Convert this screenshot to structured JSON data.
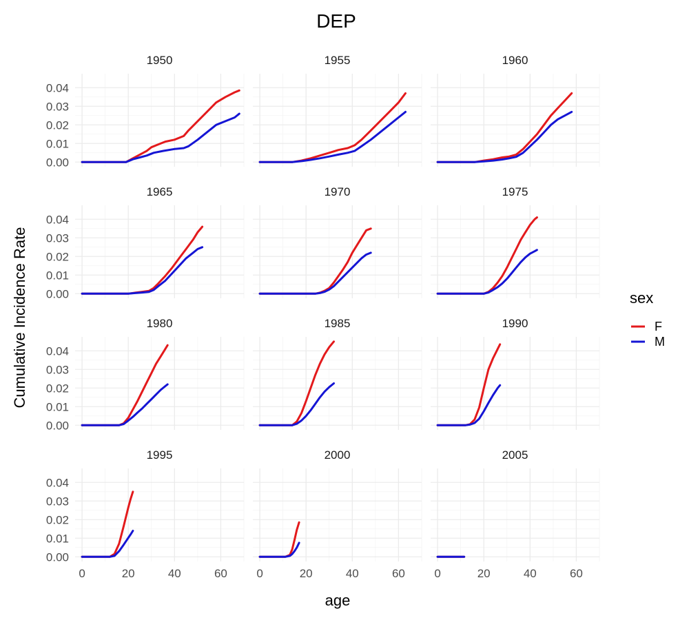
{
  "chart_data": {
    "type": "line",
    "title": "DEP",
    "xlabel": "age",
    "ylabel": "Cumulative Incidence Rate",
    "xlim": [
      -3,
      70
    ],
    "ylim": [
      -0.0025,
      0.0475
    ],
    "x_ticks": [
      0,
      20,
      40,
      60
    ],
    "x_tick_labels": [
      "0",
      "20",
      "40",
      "60"
    ],
    "y_ticks": [
      0,
      0.01,
      0.02,
      0.03,
      0.04
    ],
    "y_tick_labels": [
      "0.00",
      "0.01",
      "0.02",
      "0.03",
      "0.04"
    ],
    "grid": true,
    "legend": {
      "title": "sex",
      "placement": "right",
      "entries": [
        {
          "name": "F",
          "color": "#e31a1c"
        },
        {
          "name": "M",
          "color": "#1515d4"
        }
      ]
    },
    "panels": [
      {
        "label": "1950",
        "series": [
          {
            "name": "F",
            "x": [
              0,
              19,
              22,
              25,
              28,
              30,
              33,
              36,
              40,
              44,
              46,
              50,
              54,
              58,
              62,
              66,
              68
            ],
            "y": [
              0,
              0,
              0.002,
              0.004,
              0.006,
              0.008,
              0.0095,
              0.011,
              0.012,
              0.014,
              0.017,
              0.022,
              0.027,
              0.032,
              0.035,
              0.0375,
              0.0385
            ]
          },
          {
            "name": "M",
            "x": [
              0,
              19,
              22,
              25,
              28,
              31,
              35,
              40,
              44,
              46,
              50,
              54,
              58,
              62,
              66,
              68
            ],
            "y": [
              0,
              0,
              0.0015,
              0.0025,
              0.0035,
              0.005,
              0.006,
              0.007,
              0.0075,
              0.0085,
              0.012,
              0.016,
              0.02,
              0.022,
              0.024,
              0.026
            ]
          }
        ]
      },
      {
        "label": "1955",
        "series": [
          {
            "name": "F",
            "x": [
              0,
              14,
              18,
              22,
              26,
              30,
              34,
              38,
              41,
              44,
              48,
              52,
              56,
              60,
              63
            ],
            "y": [
              0,
              0,
              0.0008,
              0.002,
              0.0035,
              0.005,
              0.0065,
              0.0075,
              0.009,
              0.012,
              0.017,
              0.022,
              0.027,
              0.032,
              0.037
            ]
          },
          {
            "name": "M",
            "x": [
              0,
              14,
              18,
              22,
              26,
              30,
              34,
              38,
              41,
              44,
              48,
              52,
              56,
              60,
              63
            ],
            "y": [
              0,
              0,
              0.0005,
              0.0012,
              0.002,
              0.003,
              0.004,
              0.005,
              0.006,
              0.0085,
              0.012,
              0.016,
              0.02,
              0.024,
              0.027
            ]
          }
        ]
      },
      {
        "label": "1960",
        "series": [
          {
            "name": "F",
            "x": [
              0,
              16,
              20,
              24,
              28,
              31,
              34,
              37,
              40,
              43,
              46,
              49,
              52,
              55,
              58
            ],
            "y": [
              0,
              0,
              0.0008,
              0.0015,
              0.0025,
              0.003,
              0.004,
              0.007,
              0.011,
              0.015,
              0.02,
              0.025,
              0.029,
              0.033,
              0.037
            ]
          },
          {
            "name": "M",
            "x": [
              0,
              16,
              20,
              24,
              28,
              31,
              34,
              37,
              40,
              43,
              46,
              49,
              52,
              55,
              58
            ],
            "y": [
              0,
              0,
              0.0004,
              0.0008,
              0.0014,
              0.002,
              0.0028,
              0.005,
              0.0085,
              0.012,
              0.016,
              0.02,
              0.023,
              0.025,
              0.027
            ]
          }
        ]
      },
      {
        "label": "1965",
        "series": [
          {
            "name": "F",
            "x": [
              0,
              20,
              23,
              26,
              29,
              31,
              33,
              36,
              39,
              42,
              45,
              48,
              50,
              52
            ],
            "y": [
              0,
              0,
              0.0005,
              0.001,
              0.0015,
              0.003,
              0.0055,
              0.0095,
              0.014,
              0.019,
              0.024,
              0.029,
              0.033,
              0.036
            ]
          },
          {
            "name": "M",
            "x": [
              0,
              20,
              23,
              26,
              29,
              31,
              33,
              36,
              39,
              42,
              45,
              48,
              50,
              52
            ],
            "y": [
              0,
              0,
              0.0003,
              0.0006,
              0.001,
              0.002,
              0.004,
              0.007,
              0.011,
              0.015,
              0.019,
              0.022,
              0.024,
              0.025
            ]
          }
        ]
      },
      {
        "label": "1970",
        "series": [
          {
            "name": "F",
            "x": [
              0,
              24,
              26,
              28,
              30,
              32,
              34,
              36,
              38,
              40,
              42,
              44,
              46,
              48
            ],
            "y": [
              0,
              0,
              0.0005,
              0.0015,
              0.003,
              0.006,
              0.0095,
              0.013,
              0.017,
              0.022,
              0.026,
              0.03,
              0.034,
              0.035
            ]
          },
          {
            "name": "M",
            "x": [
              0,
              24,
              26,
              28,
              30,
              32,
              34,
              36,
              38,
              40,
              42,
              44,
              46,
              48
            ],
            "y": [
              0,
              0,
              0.0003,
              0.001,
              0.0022,
              0.004,
              0.0065,
              0.009,
              0.0115,
              0.014,
              0.0165,
              0.019,
              0.021,
              0.022
            ]
          }
        ]
      },
      {
        "label": "1975",
        "series": [
          {
            "name": "F",
            "x": [
              0,
              20,
              22,
              24,
              26,
              28,
              30,
              32,
              34,
              36,
              38,
              40,
              42,
              43
            ],
            "y": [
              0,
              0,
              0.001,
              0.003,
              0.006,
              0.0095,
              0.014,
              0.019,
              0.024,
              0.029,
              0.033,
              0.037,
              0.04,
              0.041
            ]
          },
          {
            "name": "M",
            "x": [
              0,
              20,
              22,
              24,
              26,
              28,
              30,
              32,
              34,
              36,
              38,
              40,
              42,
              43
            ],
            "y": [
              0,
              0,
              0.0006,
              0.002,
              0.0035,
              0.0055,
              0.008,
              0.011,
              0.014,
              0.017,
              0.0195,
              0.0215,
              0.0228,
              0.0235
            ]
          }
        ]
      },
      {
        "label": "1980",
        "series": [
          {
            "name": "F",
            "x": [
              0,
              16,
              18,
              20,
              22,
              24,
              26,
              28,
              30,
              32,
              34,
              36,
              37
            ],
            "y": [
              0,
              0,
              0.001,
              0.004,
              0.0085,
              0.013,
              0.018,
              0.023,
              0.028,
              0.033,
              0.037,
              0.041,
              0.043
            ]
          },
          {
            "name": "M",
            "x": [
              0,
              16,
              18,
              20,
              22,
              24,
              26,
              28,
              30,
              32,
              34,
              36,
              37
            ],
            "y": [
              0,
              0,
              0.0006,
              0.0025,
              0.0045,
              0.0068,
              0.009,
              0.0115,
              0.014,
              0.0165,
              0.019,
              0.021,
              0.022
            ]
          }
        ]
      },
      {
        "label": "1985",
        "series": [
          {
            "name": "F",
            "x": [
              0,
              14,
              16,
              18,
              20,
              22,
              24,
              26,
              28,
              30,
              32
            ],
            "y": [
              0,
              0,
              0.002,
              0.0065,
              0.013,
              0.02,
              0.027,
              0.033,
              0.038,
              0.042,
              0.045
            ]
          },
          {
            "name": "M",
            "x": [
              0,
              14,
              16,
              18,
              20,
              22,
              24,
              26,
              28,
              30,
              32
            ],
            "y": [
              0,
              0,
              0.0008,
              0.0025,
              0.005,
              0.008,
              0.0115,
              0.015,
              0.018,
              0.0205,
              0.0225
            ]
          }
        ]
      },
      {
        "label": "1990",
        "series": [
          {
            "name": "F",
            "x": [
              0,
              12,
              14,
              16,
              18,
              20,
              22,
              24,
              26,
              27
            ],
            "y": [
              0,
              0,
              0.0005,
              0.003,
              0.0095,
              0.02,
              0.03,
              0.036,
              0.041,
              0.0435
            ]
          },
          {
            "name": "M",
            "x": [
              0,
              12,
              14,
              16,
              18,
              20,
              22,
              24,
              26,
              27
            ],
            "y": [
              0,
              0,
              0.0003,
              0.0012,
              0.0035,
              0.0075,
              0.012,
              0.0162,
              0.02,
              0.0215
            ]
          }
        ]
      },
      {
        "label": "1995",
        "series": [
          {
            "name": "F",
            "x": [
              0,
              12,
              14,
              16,
              18,
              20,
              21,
              22
            ],
            "y": [
              0,
              0,
              0.0015,
              0.007,
              0.0165,
              0.0265,
              0.031,
              0.035
            ]
          },
          {
            "name": "M",
            "x": [
              0,
              12,
              14,
              16,
              18,
              20,
              21,
              22
            ],
            "y": [
              0,
              0,
              0.0005,
              0.003,
              0.0065,
              0.0102,
              0.012,
              0.014
            ]
          }
        ]
      },
      {
        "label": "2000",
        "series": [
          {
            "name": "F",
            "x": [
              0,
              11,
              13,
              14,
              15,
              16,
              17
            ],
            "y": [
              0,
              0,
              0.001,
              0.004,
              0.009,
              0.0145,
              0.0185
            ]
          },
          {
            "name": "M",
            "x": [
              0,
              11,
              13,
              14,
              15,
              16,
              17
            ],
            "y": [
              0,
              0,
              0.0005,
              0.0015,
              0.003,
              0.005,
              0.0075
            ]
          }
        ]
      },
      {
        "label": "2005",
        "series": [
          {
            "name": "F",
            "x": [
              0,
              11.5
            ],
            "y": [
              0,
              0
            ]
          },
          {
            "name": "M",
            "x": [
              0,
              11.5
            ],
            "y": [
              0,
              0
            ]
          }
        ]
      }
    ]
  }
}
